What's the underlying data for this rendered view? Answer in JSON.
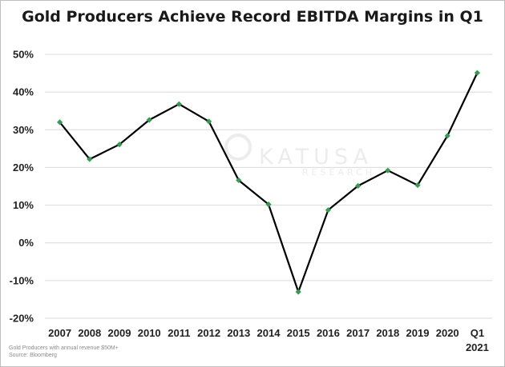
{
  "chart_data": {
    "type": "line",
    "title": "Gold Producers Achieve Record EBITDA Margins in Q1",
    "categories": [
      "2007",
      "2008",
      "2009",
      "2010",
      "2011",
      "2012",
      "2013",
      "2014",
      "2015",
      "2016",
      "2017",
      "2018",
      "2019",
      "2020",
      "Q1|2021"
    ],
    "series": [
      {
        "values": [
          32,
          22.2,
          26.1,
          32.6,
          36.8,
          32.2,
          16.6,
          10.2,
          -13,
          8.7,
          15.1,
          19.2,
          15.3,
          28.4,
          45.1
        ]
      }
    ],
    "y_ticks": [
      "50%",
      "40%",
      "30%",
      "20%",
      "10%",
      "0%",
      "-10%",
      "-20%"
    ],
    "y_tick_values": [
      50,
      40,
      30,
      20,
      10,
      0,
      -10,
      -20
    ],
    "ylim": [
      -20,
      50
    ],
    "grid": true,
    "line_color": "#000000",
    "marker_color": "#2e9e4f",
    "grid_color": "#d9d9d9"
  },
  "watermark": {
    "name": "KATUSA",
    "sub": "RESEARCH"
  },
  "footnotes": {
    "line1": "Gold Producers with annual revenue $50M+",
    "line2": "Source: Bloomberg"
  }
}
